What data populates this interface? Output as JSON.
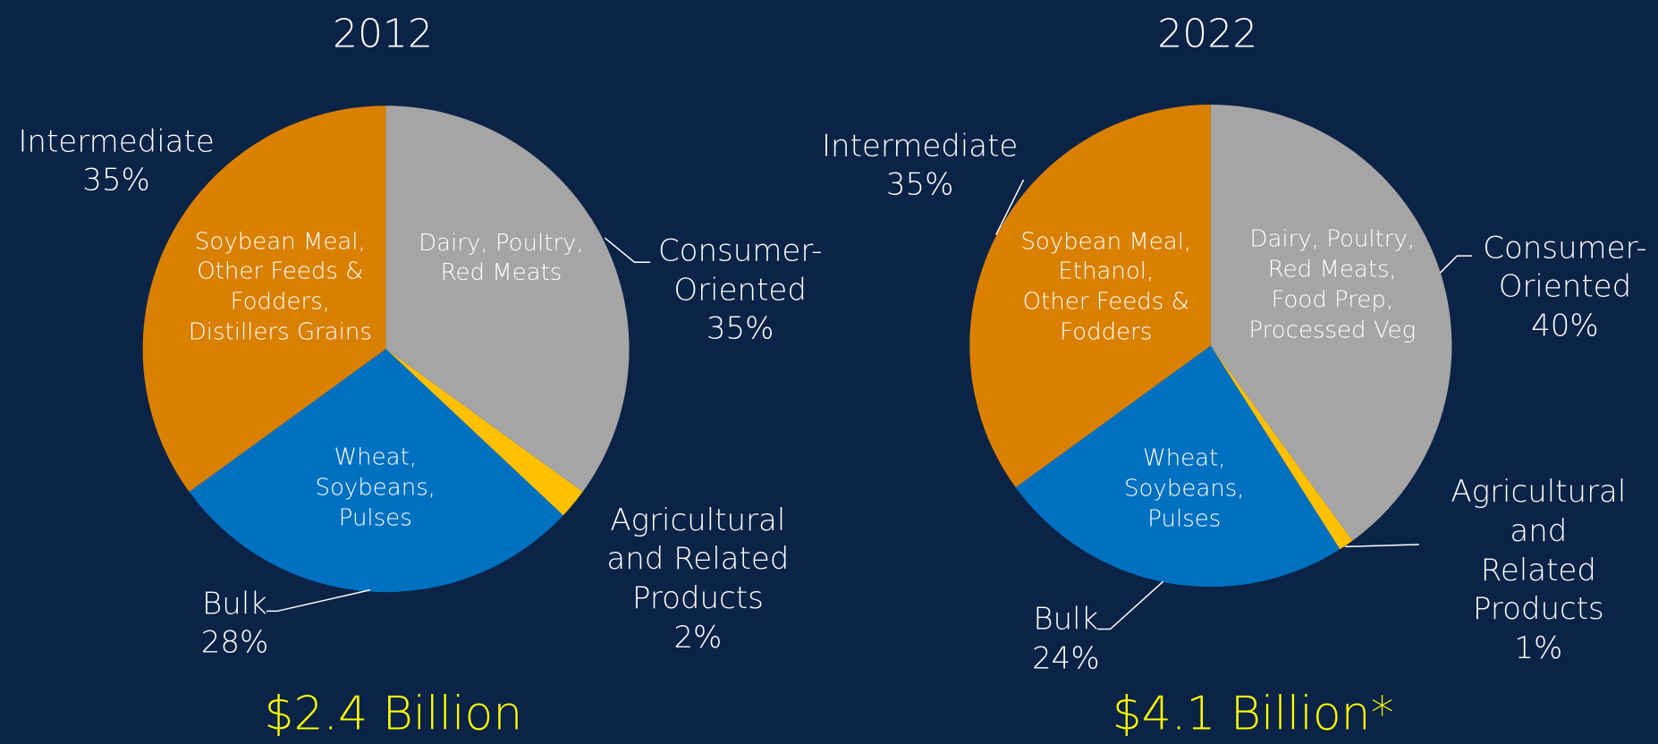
{
  "chart_data": [
    {
      "type": "pie",
      "title": "2012",
      "categories": [
        "Consumer-\nOriented",
        "Agricultural\nand Related\nProducts",
        "Bulk",
        "Intermediate"
      ],
      "values": [
        35,
        2,
        28,
        35
      ],
      "value_labels": [
        "35%",
        "2%",
        "28%",
        "35%"
      ],
      "colors": [
        "#a5a5a5",
        "#ffc000",
        "#0070c0",
        "#d98000"
      ],
      "annotations": [
        "Dairy, Poultry,\nRed Meats",
        null,
        "Wheat,\nSoybeans,\nPulses",
        "Soybean Meal,\nOther Feeds &\nFodders,\nDistillers Grains"
      ],
      "total": "$2.4 Billion"
    },
    {
      "type": "pie",
      "title": "2022",
      "categories": [
        "Consumer-\nOriented",
        "Agricultural\nand Related\nProducts",
        "Bulk",
        "Intermediate"
      ],
      "values": [
        40,
        1,
        24,
        35
      ],
      "value_labels": [
        "40%",
        "1%",
        "24%",
        "35%"
      ],
      "colors": [
        "#a5a5a5",
        "#ffc000",
        "#0070c0",
        "#d98000"
      ],
      "annotations": [
        "Dairy, Poultry,\nRed Meats,\nFood Prep,\nProcessed Veg",
        null,
        "Wheat,\nSoybeans,\nPulses",
        "Soybean Meal,\nEthanol,\nOther Feeds &\nFodders"
      ],
      "total": "$4.1 Billion*"
    }
  ]
}
